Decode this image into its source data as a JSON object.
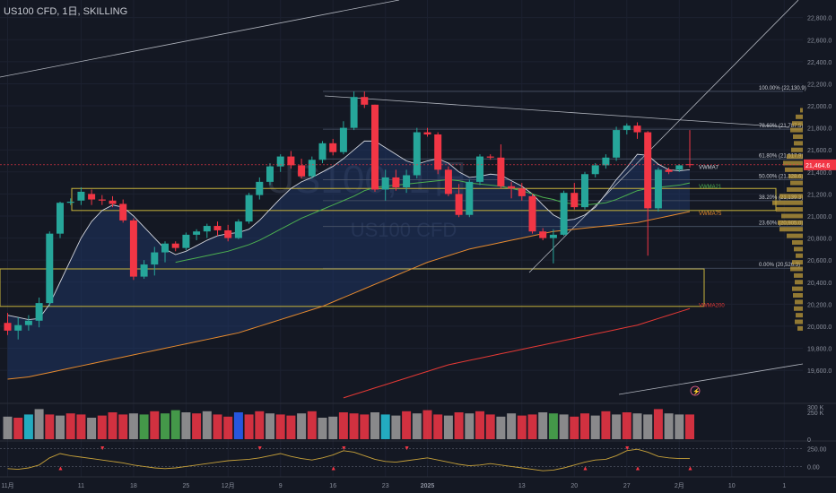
{
  "window": {
    "title": "US100 CFD, 1日, SKILLING"
  },
  "watermark": {
    "symbol": "US100, 1日",
    "name": "US100 CFD"
  },
  "colors": {
    "bg": "#141823",
    "up": "#26a69a",
    "down": "#f23645",
    "fib": "#4a5568",
    "zone": "#c8b43c",
    "vwma7": "#d1d4dc",
    "vwma21": "#4caf50",
    "vwma75": "#e68a2e",
    "vwma200": "#e53935",
    "band": "#1e3a6e"
  },
  "chart_data": {
    "type": "candlestick",
    "symbol": "US100 CFD",
    "interval": "1日",
    "broker": "SKILLING",
    "ylim": [
      19300,
      22960
    ],
    "y_ticks": [
      "22,800.0",
      "22,600.0",
      "22,400.0",
      "22,200.0",
      "22,000.0",
      "21,800.0",
      "21,600.0",
      "21,400.0",
      "21,200.0",
      "21,000.0",
      "20,800.0",
      "20,600.0",
      "20,400.0",
      "20,200.0",
      "20,000.0",
      "19,800.0",
      "19,600.0"
    ],
    "y_tick_values": [
      22800,
      22600,
      22400,
      22200,
      22000,
      21800,
      21600,
      21400,
      21200,
      21000,
      20800,
      20600,
      20400,
      20200,
      20000,
      19800,
      19600
    ],
    "x_ticks": [
      {
        "label": "11月",
        "i": 0
      },
      {
        "label": "11",
        "i": 7
      },
      {
        "label": "18",
        "i": 12
      },
      {
        "label": "25",
        "i": 17
      },
      {
        "label": "12月",
        "i": 21
      },
      {
        "label": "9",
        "i": 26
      },
      {
        "label": "16",
        "i": 31
      },
      {
        "label": "23",
        "i": 36
      },
      {
        "label": "2025",
        "i": 40
      },
      {
        "label": "13",
        "i": 49
      },
      {
        "label": "20",
        "i": 54
      },
      {
        "label": "27",
        "i": 59
      },
      {
        "label": "2月",
        "i": 64
      },
      {
        "label": "10",
        "i": 69
      },
      {
        "label": "1",
        "i": 74
      }
    ],
    "last_price": {
      "label": "21,464.6",
      "value": 21464.6
    },
    "candles": [
      {
        "o": 20030,
        "h": 20120,
        "l": 19920,
        "c": 19960
      },
      {
        "o": 19960,
        "h": 20080,
        "l": 19880,
        "c": 20010
      },
      {
        "o": 20010,
        "h": 20100,
        "l": 19960,
        "c": 20050
      },
      {
        "o": 20050,
        "h": 20260,
        "l": 19990,
        "c": 20210
      },
      {
        "o": 20210,
        "h": 20860,
        "l": 20180,
        "c": 20840
      },
      {
        "o": 20840,
        "h": 21130,
        "l": 20800,
        "c": 21120
      },
      {
        "o": 21120,
        "h": 21160,
        "l": 21100,
        "c": 21130
      },
      {
        "o": 21140,
        "h": 21260,
        "l": 21100,
        "c": 21220
      },
      {
        "o": 21200,
        "h": 21240,
        "l": 21100,
        "c": 21150
      },
      {
        "o": 21150,
        "h": 21190,
        "l": 21100,
        "c": 21140
      },
      {
        "o": 21140,
        "h": 21180,
        "l": 21080,
        "c": 21110
      },
      {
        "o": 21110,
        "h": 21150,
        "l": 20940,
        "c": 20960
      },
      {
        "o": 20960,
        "h": 20980,
        "l": 20420,
        "c": 20450
      },
      {
        "o": 20450,
        "h": 20600,
        "l": 20430,
        "c": 20560
      },
      {
        "o": 20560,
        "h": 20720,
        "l": 20460,
        "c": 20670
      },
      {
        "o": 20670,
        "h": 20770,
        "l": 20580,
        "c": 20750
      },
      {
        "o": 20750,
        "h": 20770,
        "l": 20680,
        "c": 20710
      },
      {
        "o": 20710,
        "h": 20850,
        "l": 20690,
        "c": 20830
      },
      {
        "o": 20830,
        "h": 20880,
        "l": 20780,
        "c": 20860
      },
      {
        "o": 20860,
        "h": 20930,
        "l": 20800,
        "c": 20910
      },
      {
        "o": 20910,
        "h": 20950,
        "l": 20820,
        "c": 20870
      },
      {
        "o": 20870,
        "h": 20920,
        "l": 20770,
        "c": 20800
      },
      {
        "o": 20800,
        "h": 20970,
        "l": 20790,
        "c": 20950
      },
      {
        "o": 20950,
        "h": 21210,
        "l": 20930,
        "c": 21190
      },
      {
        "o": 21190,
        "h": 21350,
        "l": 21150,
        "c": 21310
      },
      {
        "o": 21310,
        "h": 21480,
        "l": 21280,
        "c": 21450
      },
      {
        "o": 21450,
        "h": 21560,
        "l": 21400,
        "c": 21540
      },
      {
        "o": 21540,
        "h": 21590,
        "l": 21430,
        "c": 21460
      },
      {
        "o": 21460,
        "h": 21520,
        "l": 21340,
        "c": 21360
      },
      {
        "o": 21360,
        "h": 21540,
        "l": 21340,
        "c": 21510
      },
      {
        "o": 21510,
        "h": 21680,
        "l": 21480,
        "c": 21660
      },
      {
        "o": 21660,
        "h": 21700,
        "l": 21550,
        "c": 21580
      },
      {
        "o": 21580,
        "h": 21860,
        "l": 21560,
        "c": 21800
      },
      {
        "o": 21800,
        "h": 22130,
        "l": 21780,
        "c": 22080
      },
      {
        "o": 22080,
        "h": 22130,
        "l": 21980,
        "c": 22010
      },
      {
        "o": 22010,
        "h": 22010,
        "l": 21220,
        "c": 21240
      },
      {
        "o": 21240,
        "h": 21420,
        "l": 21140,
        "c": 21350
      },
      {
        "o": 21350,
        "h": 21420,
        "l": 21230,
        "c": 21260
      },
      {
        "o": 21260,
        "h": 21420,
        "l": 21210,
        "c": 21370
      },
      {
        "o": 21370,
        "h": 21800,
        "l": 21340,
        "c": 21760
      },
      {
        "o": 21760,
        "h": 21800,
        "l": 21720,
        "c": 21740
      },
      {
        "o": 21740,
        "h": 21760,
        "l": 21380,
        "c": 21420
      },
      {
        "o": 21420,
        "h": 21450,
        "l": 21180,
        "c": 21200
      },
      {
        "o": 21200,
        "h": 21290,
        "l": 20990,
        "c": 21010
      },
      {
        "o": 21010,
        "h": 21330,
        "l": 20990,
        "c": 21310
      },
      {
        "o": 21310,
        "h": 21560,
        "l": 21280,
        "c": 21540
      },
      {
        "o": 21540,
        "h": 21560,
        "l": 21510,
        "c": 21530
      },
      {
        "o": 21530,
        "h": 21650,
        "l": 21250,
        "c": 21270
      },
      {
        "o": 21270,
        "h": 21310,
        "l": 21160,
        "c": 21250
      },
      {
        "o": 21250,
        "h": 21300,
        "l": 21140,
        "c": 21180
      },
      {
        "o": 21180,
        "h": 21200,
        "l": 20840,
        "c": 20860
      },
      {
        "o": 20860,
        "h": 20890,
        "l": 20780,
        "c": 20800
      },
      {
        "o": 20800,
        "h": 20880,
        "l": 20570,
        "c": 20830
      },
      {
        "o": 20830,
        "h": 21230,
        "l": 20820,
        "c": 21210
      },
      {
        "o": 21210,
        "h": 21300,
        "l": 21060,
        "c": 21080
      },
      {
        "o": 21080,
        "h": 21400,
        "l": 21060,
        "c": 21380
      },
      {
        "o": 21380,
        "h": 21480,
        "l": 21350,
        "c": 21460
      },
      {
        "o": 21460,
        "h": 21560,
        "l": 21430,
        "c": 21530
      },
      {
        "o": 21530,
        "h": 21810,
        "l": 21500,
        "c": 21780
      },
      {
        "o": 21780,
        "h": 21840,
        "l": 21740,
        "c": 21820
      },
      {
        "o": 21820,
        "h": 21850,
        "l": 21700,
        "c": 21760
      },
      {
        "o": 21760,
        "h": 21770,
        "l": 20640,
        "c": 21070
      },
      {
        "o": 21070,
        "h": 21440,
        "l": 21040,
        "c": 21420
      },
      {
        "o": 21420,
        "h": 21440,
        "l": 21380,
        "c": 21400
      },
      {
        "o": 21420,
        "h": 21470,
        "l": 21400,
        "c": 21460
      },
      {
        "o": 21470,
        "h": 21780,
        "l": 21440,
        "c": 21464.6
      }
    ],
    "series": [
      {
        "name": "VWMA7",
        "values": [
          20100,
          20080,
          20060,
          20070,
          20200,
          20400,
          20600,
          20800,
          20950,
          21050,
          21100,
          21080,
          21000,
          20900,
          20800,
          20700,
          20650,
          20680,
          20730,
          20780,
          20820,
          20840,
          20850,
          20880,
          20960,
          21060,
          21160,
          21250,
          21310,
          21350,
          21400,
          21450,
          21520,
          21600,
          21680,
          21680,
          21620,
          21560,
          21500,
          21470,
          21500,
          21520,
          21480,
          21400,
          21350,
          21360,
          21380,
          21370,
          21320,
          21270,
          21200,
          21100,
          21010,
          20960,
          20970,
          21010,
          21080,
          21200,
          21330,
          21440,
          21560,
          21550,
          21470,
          21420,
          21410,
          21420
        ]
      },
      {
        "name": "VWMA21",
        "values": [
          null,
          null,
          null,
          null,
          null,
          null,
          null,
          null,
          null,
          null,
          null,
          null,
          null,
          null,
          null,
          null,
          20580,
          20600,
          20620,
          20640,
          20660,
          20680,
          20710,
          20740,
          20780,
          20830,
          20880,
          20930,
          20980,
          21020,
          21060,
          21100,
          21140,
          21180,
          21230,
          21260,
          21270,
          21280,
          21290,
          21300,
          21310,
          21320,
          21330,
          21320,
          21300,
          21290,
          21280,
          21270,
          21250,
          21230,
          21200,
          21170,
          21150,
          21120,
          21110,
          21100,
          21110,
          21120,
          21150,
          21190,
          21230,
          21250,
          21260,
          21270,
          21280,
          21300
        ]
      },
      {
        "name": "VWMA75",
        "values": [
          19520,
          19530,
          19540,
          19560,
          19580,
          19600,
          19620,
          19640,
          19660,
          19680,
          19700,
          19720,
          19740,
          19760,
          19780,
          19800,
          19820,
          19840,
          19860,
          19880,
          19900,
          19920,
          19940,
          19970,
          20000,
          20030,
          20060,
          20090,
          20120,
          20150,
          20180,
          20220,
          20260,
          20300,
          20340,
          20380,
          20420,
          20460,
          20500,
          20540,
          20580,
          20610,
          20640,
          20670,
          20700,
          20720,
          20740,
          20760,
          20780,
          20800,
          20820,
          20840,
          20860,
          20870,
          20880,
          20890,
          20900,
          20910,
          20920,
          20930,
          20940,
          20960,
          20980,
          21000,
          21020,
          21040
        ]
      },
      {
        "name": "VWMA200",
        "values": [
          null,
          null,
          null,
          null,
          null,
          null,
          null,
          null,
          null,
          null,
          null,
          null,
          null,
          null,
          null,
          null,
          null,
          null,
          null,
          null,
          null,
          null,
          null,
          null,
          null,
          null,
          null,
          null,
          null,
          null,
          null,
          null,
          19350,
          19380,
          19410,
          19440,
          19470,
          19500,
          19530,
          19560,
          19590,
          19620,
          19650,
          19670,
          19690,
          19710,
          19730,
          19750,
          19770,
          19790,
          19810,
          19830,
          19850,
          19870,
          19890,
          19910,
          19930,
          19950,
          19970,
          19990,
          20010,
          20040,
          20070,
          20100,
          20130,
          20160
        ]
      }
    ],
    "fib_levels": [
      {
        "label": "100.00% (22,130.9)",
        "value": 22130.9
      },
      {
        "label": "78.60% (21,787.5)",
        "value": 21787.5
      },
      {
        "label": "61.80% (21,517.9)",
        "value": 21517.9
      },
      {
        "label": "50.00% (21,328.6)",
        "value": 21328.6
      },
      {
        "label": "38.20% (21,139.3)",
        "value": 21139.3
      },
      {
        "label": "23.60% (20,905.0)",
        "value": 20905.0
      },
      {
        "label": "0.00% (20,526.3)",
        "value": 20526.3
      }
    ],
    "zones": [
      {
        "top": 21250,
        "bottom": 21050
      },
      {
        "top": 20520,
        "bottom": 20180
      }
    ],
    "volume": {
      "ticks": [
        "300 K",
        "250 K",
        "0"
      ],
      "tick_values": [
        300,
        250,
        0
      ],
      "ylim": [
        0,
        300
      ],
      "values": [
        210,
        200,
        230,
        280,
        230,
        220,
        240,
        230,
        200,
        220,
        250,
        230,
        240,
        230,
        260,
        240,
        270,
        250,
        240,
        260,
        230,
        210,
        250,
        230,
        260,
        240,
        230,
        220,
        240,
        260,
        200,
        210,
        250,
        240,
        230,
        250,
        230,
        220,
        260,
        240,
        270,
        230,
        220,
        250,
        240,
        260,
        230,
        210,
        240,
        220,
        230,
        250,
        240,
        230,
        210,
        240,
        220,
        260,
        230,
        250,
        240,
        230,
        280,
        240,
        230,
        230
      ],
      "colors": [
        "#9e9e9e",
        "#f23645",
        "#26c6da",
        "#9e9e9e",
        "#f23645",
        "#9e9e9e",
        "#f23645",
        "#f23645",
        "#9e9e9e",
        "#f23645",
        "#f23645",
        "#f23645",
        "#9e9e9e",
        "#4caf50",
        "#f23645",
        "#4caf50",
        "#4caf50",
        "#9e9e9e",
        "#f23645",
        "#9e9e9e",
        "#f23645",
        "#f23645",
        "#2962ff",
        "#f23645",
        "#f23645",
        "#9e9e9e",
        "#f23645",
        "#f23645",
        "#9e9e9e",
        "#f23645",
        "#9e9e9e",
        "#9e9e9e",
        "#f23645",
        "#f23645",
        "#f23645",
        "#9e9e9e",
        "#26c6da",
        "#9e9e9e",
        "#f23645",
        "#9e9e9e",
        "#f23645",
        "#f23645",
        "#9e9e9e",
        "#f23645",
        "#9e9e9e",
        "#f23645",
        "#f23645",
        "#9e9e9e",
        "#9e9e9e",
        "#f23645",
        "#f23645",
        "#9e9e9e",
        "#4caf50",
        "#9e9e9e",
        "#f23645",
        "#f23645",
        "#9e9e9e",
        "#f23645",
        "#9e9e9e",
        "#f23645",
        "#9e9e9e",
        "#9e9e9e",
        "#f23645",
        "#9e9e9e",
        "#9e9e9e",
        "#f23645"
      ]
    },
    "oscillator": {
      "ticks": [
        "250.00",
        "0.00"
      ],
      "tick_values": [
        250,
        0
      ],
      "ylim": [
        -120,
        330
      ],
      "values": [
        -30,
        -40,
        -20,
        20,
        120,
        180,
        150,
        130,
        110,
        90,
        70,
        50,
        20,
        0,
        -20,
        -30,
        -20,
        0,
        20,
        40,
        60,
        80,
        90,
        100,
        120,
        150,
        180,
        140,
        110,
        90,
        120,
        160,
        220,
        200,
        150,
        100,
        70,
        60,
        80,
        100,
        120,
        90,
        60,
        30,
        10,
        20,
        40,
        20,
        0,
        -20,
        -40,
        -60,
        -50,
        -20,
        20,
        60,
        90,
        100,
        150,
        220,
        240,
        200,
        140,
        120,
        110,
        110
      ]
    }
  }
}
